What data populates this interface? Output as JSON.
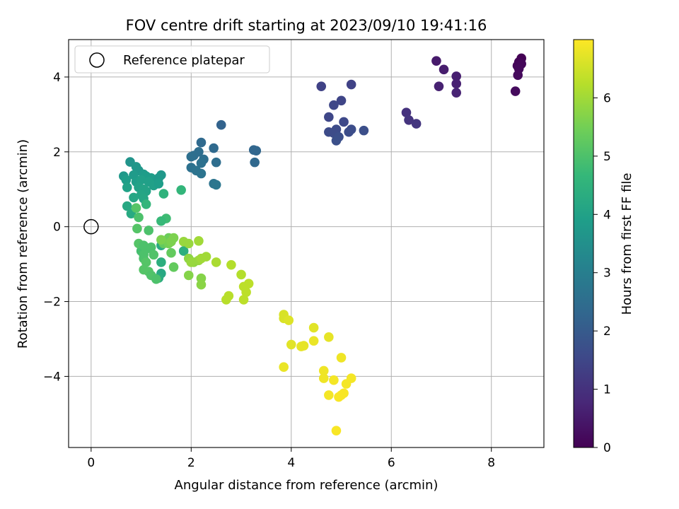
{
  "chart_data": {
    "type": "scatter",
    "title": "FOV centre drift starting at 2023/09/10 19:41:16",
    "xlabel": "Angular distance from reference (arcmin)",
    "ylabel": "Rotation from reference (arcmin)",
    "xlim": [
      -0.45,
      9.05
    ],
    "ylim": [
      -5.9,
      5.0
    ],
    "xticks": [
      0,
      2,
      4,
      6,
      8
    ],
    "yticks": [
      -4,
      -2,
      0,
      2,
      4
    ],
    "xtick_labels": [
      "0",
      "2",
      "4",
      "6",
      "8"
    ],
    "ytick_labels": [
      "−4",
      "−2",
      "0",
      "2",
      "4"
    ],
    "grid": true,
    "legend": {
      "placement": "upper-left",
      "entries": [
        {
          "label": "Reference platepar",
          "marker": "open-circle"
        }
      ]
    },
    "reference_point": {
      "x": 0,
      "y": 0
    },
    "colorbar": {
      "label": "Hours from first FF file",
      "colormap": "viridis",
      "range": [
        0,
        7.0
      ],
      "ticks": [
        0,
        1,
        2,
        3,
        4,
        5,
        6
      ],
      "tick_labels": [
        "0",
        "1",
        "2",
        "3",
        "4",
        "5",
        "6"
      ]
    },
    "points": [
      {
        "x": 8.6,
        "y": 4.5,
        "t": 0.0
      },
      {
        "x": 8.55,
        "y": 4.4,
        "t": 0.05
      },
      {
        "x": 8.52,
        "y": 4.3,
        "t": 0.1
      },
      {
        "x": 8.6,
        "y": 4.35,
        "t": 0.12
      },
      {
        "x": 8.55,
        "y": 4.22,
        "t": 0.15
      },
      {
        "x": 8.53,
        "y": 4.05,
        "t": 0.18
      },
      {
        "x": 8.48,
        "y": 3.62,
        "t": 0.2
      },
      {
        "x": 6.9,
        "y": 4.43,
        "t": 0.5
      },
      {
        "x": 7.05,
        "y": 4.2,
        "t": 0.55
      },
      {
        "x": 7.3,
        "y": 4.02,
        "t": 0.6
      },
      {
        "x": 7.3,
        "y": 3.82,
        "t": 0.62
      },
      {
        "x": 6.95,
        "y": 3.75,
        "t": 0.65
      },
      {
        "x": 7.3,
        "y": 3.58,
        "t": 0.7
      },
      {
        "x": 6.3,
        "y": 3.05,
        "t": 1.0
      },
      {
        "x": 6.35,
        "y": 2.85,
        "t": 1.05
      },
      {
        "x": 6.5,
        "y": 2.75,
        "t": 1.1
      },
      {
        "x": 4.6,
        "y": 3.75,
        "t": 1.4
      },
      {
        "x": 5.2,
        "y": 3.8,
        "t": 1.4
      },
      {
        "x": 5.0,
        "y": 3.37,
        "t": 1.45
      },
      {
        "x": 4.85,
        "y": 3.25,
        "t": 1.5
      },
      {
        "x": 4.75,
        "y": 2.93,
        "t": 1.5
      },
      {
        "x": 5.05,
        "y": 2.8,
        "t": 1.55
      },
      {
        "x": 4.9,
        "y": 2.6,
        "t": 1.6
      },
      {
        "x": 4.75,
        "y": 2.53,
        "t": 1.6
      },
      {
        "x": 4.85,
        "y": 2.5,
        "t": 1.62
      },
      {
        "x": 5.2,
        "y": 2.6,
        "t": 1.65
      },
      {
        "x": 5.15,
        "y": 2.53,
        "t": 1.65
      },
      {
        "x": 5.45,
        "y": 2.57,
        "t": 1.7
      },
      {
        "x": 4.95,
        "y": 2.4,
        "t": 1.7
      },
      {
        "x": 4.9,
        "y": 2.3,
        "t": 1.72
      },
      {
        "x": 2.6,
        "y": 2.72,
        "t": 2.2
      },
      {
        "x": 2.2,
        "y": 2.25,
        "t": 2.4
      },
      {
        "x": 2.45,
        "y": 2.1,
        "t": 2.4
      },
      {
        "x": 3.25,
        "y": 2.05,
        "t": 2.3
      },
      {
        "x": 3.3,
        "y": 2.03,
        "t": 2.3
      },
      {
        "x": 3.27,
        "y": 1.72,
        "t": 2.35
      },
      {
        "x": 2.15,
        "y": 2.0,
        "t": 2.5
      },
      {
        "x": 2.05,
        "y": 1.9,
        "t": 2.5
      },
      {
        "x": 2.0,
        "y": 1.87,
        "t": 2.55
      },
      {
        "x": 2.25,
        "y": 1.8,
        "t": 2.55
      },
      {
        "x": 2.5,
        "y": 1.72,
        "t": 2.5
      },
      {
        "x": 2.2,
        "y": 1.7,
        "t": 2.6
      },
      {
        "x": 2.0,
        "y": 1.58,
        "t": 2.6
      },
      {
        "x": 2.1,
        "y": 1.5,
        "t": 2.65
      },
      {
        "x": 2.2,
        "y": 1.42,
        "t": 2.7
      },
      {
        "x": 2.45,
        "y": 1.15,
        "t": 2.7
      },
      {
        "x": 2.5,
        "y": 1.12,
        "t": 2.75
      },
      {
        "x": 0.78,
        "y": 1.73,
        "t": 3.6
      },
      {
        "x": 0.9,
        "y": 1.6,
        "t": 3.7
      },
      {
        "x": 0.95,
        "y": 1.5,
        "t": 3.7
      },
      {
        "x": 0.65,
        "y": 1.35,
        "t": 3.75
      },
      {
        "x": 0.85,
        "y": 1.38,
        "t": 3.8
      },
      {
        "x": 1.05,
        "y": 1.4,
        "t": 3.8
      },
      {
        "x": 1.1,
        "y": 1.35,
        "t": 3.85
      },
      {
        "x": 1.2,
        "y": 1.3,
        "t": 3.85
      },
      {
        "x": 1.4,
        "y": 1.38,
        "t": 3.7
      },
      {
        "x": 1.35,
        "y": 1.3,
        "t": 3.75
      },
      {
        "x": 0.7,
        "y": 1.25,
        "t": 3.9
      },
      {
        "x": 0.9,
        "y": 1.2,
        "t": 3.9
      },
      {
        "x": 1.0,
        "y": 1.25,
        "t": 3.95
      },
      {
        "x": 1.15,
        "y": 1.2,
        "t": 3.95
      },
      {
        "x": 1.25,
        "y": 1.1,
        "t": 3.95
      },
      {
        "x": 1.35,
        "y": 1.15,
        "t": 3.9
      },
      {
        "x": 0.72,
        "y": 1.05,
        "t": 4.0
      },
      {
        "x": 0.95,
        "y": 1.05,
        "t": 4.0
      },
      {
        "x": 1.05,
        "y": 1.0,
        "t": 4.05
      },
      {
        "x": 1.1,
        "y": 0.95,
        "t": 4.05
      },
      {
        "x": 1.0,
        "y": 0.85,
        "t": 4.1
      },
      {
        "x": 1.05,
        "y": 0.75,
        "t": 4.15
      },
      {
        "x": 0.85,
        "y": 0.78,
        "t": 4.15
      },
      {
        "x": 0.72,
        "y": 0.55,
        "t": 4.2
      },
      {
        "x": 0.8,
        "y": 0.35,
        "t": 4.25
      },
      {
        "x": 1.1,
        "y": 0.6,
        "t": 4.6
      },
      {
        "x": 1.45,
        "y": 0.88,
        "t": 4.5
      },
      {
        "x": 1.8,
        "y": 0.98,
        "t": 4.6
      },
      {
        "x": 1.5,
        "y": 0.22,
        "t": 4.8
      },
      {
        "x": 1.4,
        "y": 0.15,
        "t": 4.7
      },
      {
        "x": 0.9,
        "y": 0.5,
        "t": 5.1
      },
      {
        "x": 0.95,
        "y": 0.25,
        "t": 5.0
      },
      {
        "x": 0.92,
        "y": -0.05,
        "t": 5.1
      },
      {
        "x": 1.15,
        "y": -0.1,
        "t": 5.0
      },
      {
        "x": 1.4,
        "y": -0.5,
        "t": 4.3
      },
      {
        "x": 1.4,
        "y": -0.95,
        "t": 4.4
      },
      {
        "x": 1.4,
        "y": -1.25,
        "t": 4.2
      },
      {
        "x": 1.35,
        "y": -1.37,
        "t": 4.3
      },
      {
        "x": 1.85,
        "y": -0.65,
        "t": 4.4
      },
      {
        "x": 1.0,
        "y": -0.65,
        "t": 4.9
      },
      {
        "x": 1.05,
        "y": -0.75,
        "t": 5.0
      },
      {
        "x": 1.1,
        "y": -0.6,
        "t": 5.0
      },
      {
        "x": 0.95,
        "y": -0.45,
        "t": 5.1
      },
      {
        "x": 1.05,
        "y": -0.5,
        "t": 5.0
      },
      {
        "x": 1.2,
        "y": -0.55,
        "t": 5.0
      },
      {
        "x": 1.25,
        "y": -0.75,
        "t": 5.05
      },
      {
        "x": 1.05,
        "y": -0.85,
        "t": 5.0
      },
      {
        "x": 1.1,
        "y": -0.95,
        "t": 5.1
      },
      {
        "x": 1.05,
        "y": -1.15,
        "t": 5.1
      },
      {
        "x": 1.15,
        "y": -1.2,
        "t": 5.1
      },
      {
        "x": 1.2,
        "y": -1.3,
        "t": 5.05
      },
      {
        "x": 1.3,
        "y": -1.4,
        "t": 5.0
      },
      {
        "x": 1.45,
        "y": -0.45,
        "t": 5.3
      },
      {
        "x": 1.55,
        "y": -0.3,
        "t": 5.4
      },
      {
        "x": 1.6,
        "y": -0.7,
        "t": 5.3
      },
      {
        "x": 1.65,
        "y": -1.08,
        "t": 5.3
      },
      {
        "x": 1.55,
        "y": -0.45,
        "t": 5.5
      },
      {
        "x": 1.65,
        "y": -0.3,
        "t": 5.6
      },
      {
        "x": 1.4,
        "y": -0.35,
        "t": 5.6
      },
      {
        "x": 1.6,
        "y": -0.4,
        "t": 5.6
      },
      {
        "x": 1.85,
        "y": -0.4,
        "t": 5.9
      },
      {
        "x": 1.95,
        "y": -0.45,
        "t": 5.9
      },
      {
        "x": 2.15,
        "y": -0.38,
        "t": 6.0
      },
      {
        "x": 1.95,
        "y": -0.85,
        "t": 5.8
      },
      {
        "x": 2.05,
        "y": -0.95,
        "t": 5.8
      },
      {
        "x": 2.0,
        "y": -0.95,
        "t": 5.9
      },
      {
        "x": 2.15,
        "y": -0.9,
        "t": 5.9
      },
      {
        "x": 2.3,
        "y": -0.8,
        "t": 6.0
      },
      {
        "x": 2.2,
        "y": -0.85,
        "t": 6.0
      },
      {
        "x": 1.95,
        "y": -1.3,
        "t": 5.7
      },
      {
        "x": 2.2,
        "y": -1.38,
        "t": 5.7
      },
      {
        "x": 2.2,
        "y": -1.55,
        "t": 5.75
      },
      {
        "x": 2.5,
        "y": -0.95,
        "t": 6.1
      },
      {
        "x": 2.8,
        "y": -1.02,
        "t": 6.2
      },
      {
        "x": 3.0,
        "y": -1.28,
        "t": 6.2
      },
      {
        "x": 3.05,
        "y": -1.6,
        "t": 6.3
      },
      {
        "x": 3.15,
        "y": -1.52,
        "t": 6.3
      },
      {
        "x": 3.1,
        "y": -1.75,
        "t": 6.3
      },
      {
        "x": 2.75,
        "y": -1.85,
        "t": 6.25
      },
      {
        "x": 2.7,
        "y": -1.95,
        "t": 6.25
      },
      {
        "x": 3.05,
        "y": -1.95,
        "t": 6.3
      },
      {
        "x": 3.85,
        "y": -2.35,
        "t": 6.6
      },
      {
        "x": 3.85,
        "y": -2.45,
        "t": 6.6
      },
      {
        "x": 3.95,
        "y": -2.5,
        "t": 6.65
      },
      {
        "x": 4.45,
        "y": -2.7,
        "t": 6.7
      },
      {
        "x": 4.75,
        "y": -2.95,
        "t": 6.75
      },
      {
        "x": 4.0,
        "y": -3.15,
        "t": 6.7
      },
      {
        "x": 4.2,
        "y": -3.2,
        "t": 6.75
      },
      {
        "x": 4.25,
        "y": -3.18,
        "t": 6.75
      },
      {
        "x": 4.45,
        "y": -3.05,
        "t": 6.8
      },
      {
        "x": 5.0,
        "y": -3.5,
        "t": 6.85
      },
      {
        "x": 3.85,
        "y": -3.75,
        "t": 6.8
      },
      {
        "x": 4.65,
        "y": -3.85,
        "t": 6.85
      },
      {
        "x": 4.65,
        "y": -4.05,
        "t": 6.85
      },
      {
        "x": 4.85,
        "y": -4.1,
        "t": 6.9
      },
      {
        "x": 5.2,
        "y": -4.05,
        "t": 6.9
      },
      {
        "x": 5.1,
        "y": -4.2,
        "t": 6.9
      },
      {
        "x": 4.75,
        "y": -4.5,
        "t": 6.9
      },
      {
        "x": 5.05,
        "y": -4.45,
        "t": 6.95
      },
      {
        "x": 4.95,
        "y": -4.55,
        "t": 6.95
      },
      {
        "x": 5.0,
        "y": -4.5,
        "t": 6.95
      },
      {
        "x": 4.9,
        "y": -5.45,
        "t": 6.95
      }
    ]
  }
}
